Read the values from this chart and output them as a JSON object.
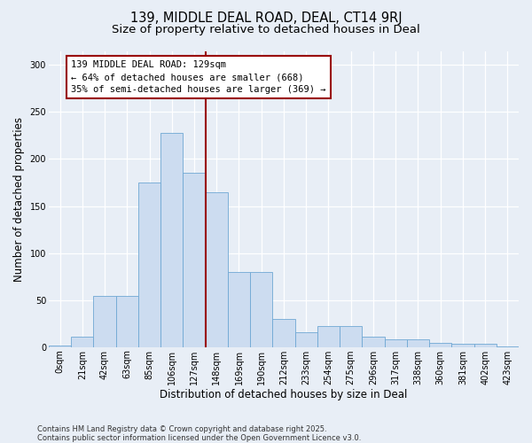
{
  "title_line1": "139, MIDDLE DEAL ROAD, DEAL, CT14 9RJ",
  "title_line2": "Size of property relative to detached houses in Deal",
  "xlabel": "Distribution of detached houses by size in Deal",
  "ylabel": "Number of detached properties",
  "bar_labels": [
    "0sqm",
    "21sqm",
    "42sqm",
    "63sqm",
    "85sqm",
    "106sqm",
    "127sqm",
    "148sqm",
    "169sqm",
    "190sqm",
    "212sqm",
    "233sqm",
    "254sqm",
    "275sqm",
    "296sqm",
    "317sqm",
    "338sqm",
    "360sqm",
    "381sqm",
    "402sqm",
    "423sqm"
  ],
  "bar_values": [
    2,
    11,
    54,
    54,
    175,
    228,
    185,
    165,
    80,
    80,
    30,
    16,
    22,
    22,
    11,
    8,
    8,
    4,
    3,
    3,
    1
  ],
  "bar_color": "#ccdcf0",
  "bar_edge_color": "#6fa8d4",
  "bg_color": "#e8eef6",
  "grid_color": "#ffffff",
  "vline_color": "#990000",
  "vline_bin_index": 7,
  "annotation_text": "139 MIDDLE DEAL ROAD: 129sqm\n← 64% of detached houses are smaller (668)\n35% of semi-detached houses are larger (369) →",
  "ylim": [
    0,
    315
  ],
  "yticks": [
    0,
    50,
    100,
    150,
    200,
    250,
    300
  ],
  "footer_text": "Contains HM Land Registry data © Crown copyright and database right 2025.\nContains public sector information licensed under the Open Government Licence v3.0.",
  "title_fontsize": 10.5,
  "subtitle_fontsize": 9.5,
  "axis_label_fontsize": 8.5,
  "tick_fontsize": 7,
  "annotation_fontsize": 7.5,
  "footer_fontsize": 6.0
}
